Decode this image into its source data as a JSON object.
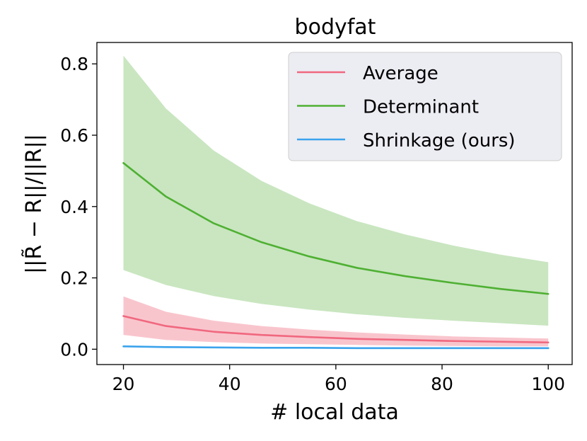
{
  "chart_data": {
    "type": "line",
    "title": "bodyfat",
    "xlabel": "# local data",
    "ylabel": "||R̃ − R||/||R||",
    "xlim": [
      15,
      104.5
    ],
    "ylim": [
      -0.043,
      0.86
    ],
    "xticks": [
      20,
      40,
      60,
      80,
      100
    ],
    "yticks": [
      0.0,
      0.2,
      0.4,
      0.6,
      0.8
    ],
    "xtick_labels": [
      "20",
      "40",
      "60",
      "80",
      "100"
    ],
    "ytick_labels": [
      "0.0",
      "0.2",
      "0.4",
      "0.6",
      "0.8"
    ],
    "x": [
      20,
      28,
      37,
      46,
      55,
      64,
      73,
      82,
      91,
      100
    ],
    "legend_position": "top-right",
    "series": [
      {
        "name": "Average",
        "color": "#f0687f",
        "band_color": "#f9c5cd",
        "values": [
          0.093,
          0.065,
          0.049,
          0.04,
          0.034,
          0.029,
          0.026,
          0.023,
          0.021,
          0.019
        ],
        "lower": [
          0.04,
          0.026,
          0.02,
          0.016,
          0.014,
          0.012,
          0.01,
          0.009,
          0.008,
          0.008
        ],
        "upper": [
          0.148,
          0.105,
          0.08,
          0.065,
          0.055,
          0.047,
          0.041,
          0.036,
          0.033,
          0.03
        ]
      },
      {
        "name": "Determinant",
        "color": "#4fb033",
        "band_color": "#c9e6c0",
        "values": [
          0.522,
          0.428,
          0.353,
          0.3,
          0.26,
          0.228,
          0.205,
          0.186,
          0.169,
          0.155
        ],
        "lower": [
          0.222,
          0.18,
          0.149,
          0.127,
          0.111,
          0.098,
          0.088,
          0.08,
          0.073,
          0.066
        ],
        "upper": [
          0.823,
          0.675,
          0.557,
          0.472,
          0.409,
          0.359,
          0.322,
          0.291,
          0.265,
          0.244
        ]
      },
      {
        "name": "Shrinkage (ours)",
        "color": "#3ba3ec",
        "band_color": "#b3d9f6",
        "values": [
          0.008,
          0.006,
          0.005,
          0.004,
          0.004,
          0.003,
          0.003,
          0.003,
          0.003,
          0.003
        ],
        "lower": [
          0.006,
          0.005,
          0.004,
          0.003,
          0.003,
          0.002,
          0.002,
          0.002,
          0.002,
          0.002
        ],
        "upper": [
          0.01,
          0.008,
          0.006,
          0.005,
          0.005,
          0.004,
          0.004,
          0.004,
          0.004,
          0.004
        ]
      }
    ]
  }
}
